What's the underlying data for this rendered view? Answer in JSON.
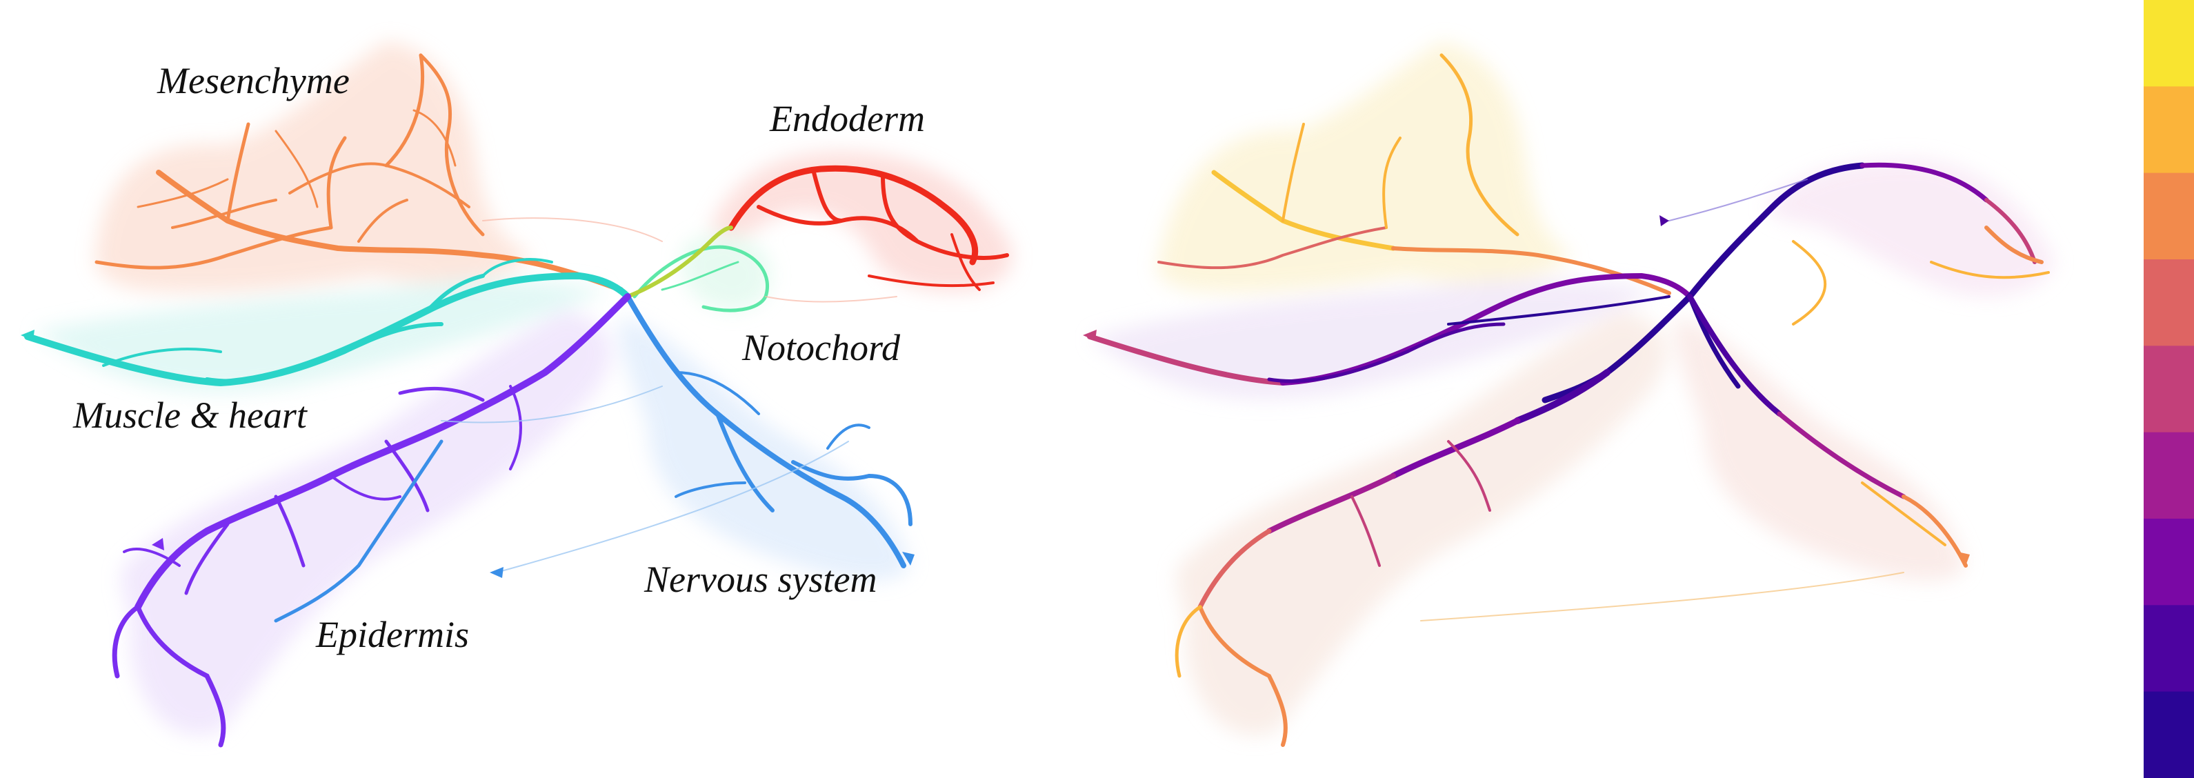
{
  "labels": {
    "mesenchyme": "Mesenchyme",
    "endoderm": "Endoderm",
    "notochord": "Notochord",
    "muscle_heart": "Muscle & heart",
    "epidermis": "Epidermis",
    "nervous_system": "Nervous system"
  },
  "lineage_colors": {
    "mesenchyme": "#f4894a",
    "endoderm": "#ee2a1c",
    "notochord": "#5ee8a8",
    "muscle_heart": "#2ad4c8",
    "epidermis": "#7a2ef0",
    "nervous_system": "#3a8fe8"
  },
  "colorbar": {
    "colors": [
      "#f9e430",
      "#fbb43a",
      "#f28a4c",
      "#de6463",
      "#c3407a",
      "#a21d92",
      "#7a08a5",
      "#4d03a0",
      "#2a0595"
    ],
    "ticks_visible": false
  }
}
